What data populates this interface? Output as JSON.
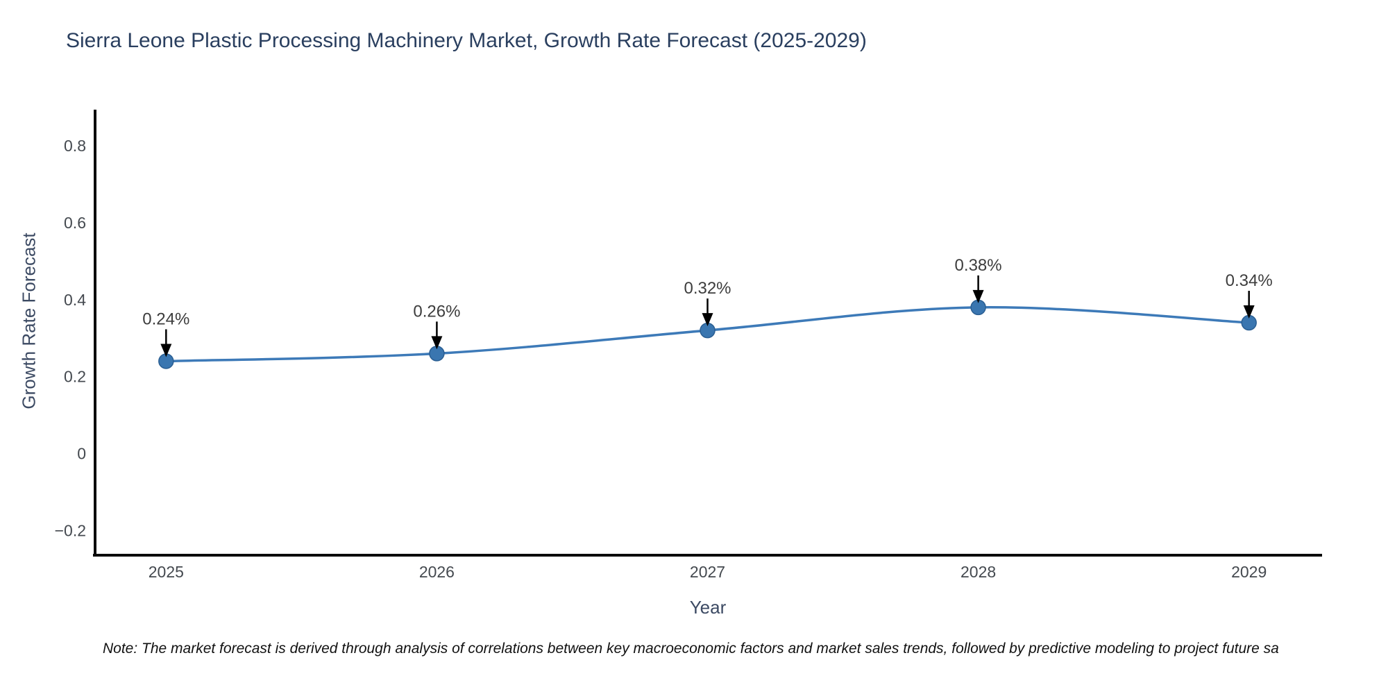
{
  "note": {
    "text": "Note: The market forecast is derived through analysis of correlations between key macroeconomic factors and market sales trends, followed by predictive modeling to project future sa"
  },
  "chart_data": {
    "type": "line",
    "title": "Sierra Leone Plastic Processing Machinery Market, Growth Rate Forecast (2025-2029)",
    "xlabel": "Year",
    "ylabel": "Growth Rate Forecast",
    "x": [
      2025,
      2026,
      2027,
      2028,
      2029
    ],
    "values": [
      0.24,
      0.26,
      0.32,
      0.38,
      0.34
    ],
    "point_labels": [
      "0.24%",
      "0.26%",
      "0.32%",
      "0.38%",
      "0.34%"
    ],
    "yticks": [
      -0.2,
      0,
      0.2,
      0.4,
      0.6,
      0.8
    ],
    "ytick_labels": [
      "−0.2",
      "0",
      "0.2",
      "0.4",
      "0.6",
      "0.8"
    ],
    "xtick_labels": [
      "2025",
      "2026",
      "2027",
      "2028",
      "2029"
    ],
    "ylim": [
      -0.268,
      0.894
    ],
    "xlim": [
      2024.73,
      2029.27
    ],
    "grid": false,
    "legend": false,
    "curve": "spline",
    "colors": {
      "line": "#3d7ab8",
      "marker_fill": "#3a76b0",
      "marker_edge": "#2b5f93",
      "axis": "#0a0a0a",
      "tick_label": "#44494f",
      "annotation_text": "#3d3d3d",
      "annotation_arrow": "#000000",
      "title": "#2a3f5f",
      "axis_title": "#3c4a63"
    }
  }
}
